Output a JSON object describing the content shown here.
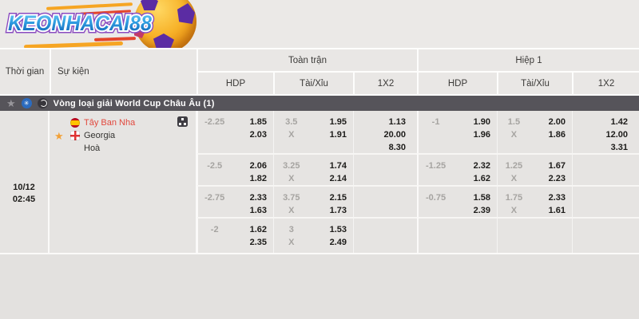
{
  "brand": {
    "name": "KEONHACAI88"
  },
  "header": {
    "time": "Thời gian",
    "event": "Sự kiện",
    "full_match": "Toàn trận",
    "first_half": "Hiệp 1",
    "hdp": "HDP",
    "over_under": "Tài/Xỉu",
    "one_x_two": "1X2"
  },
  "league": {
    "name": "Vòng loại giải World Cup Châu Âu (1)"
  },
  "match": {
    "date": "10/12",
    "time": "02:45",
    "home_team": "Tây Ban Nha",
    "away_team": "Georgia",
    "draw_label": "Hoà"
  },
  "odds_rows": [
    {
      "full": {
        "hdp": "-2.25",
        "hdp_o1": "1.85",
        "hdp_o2": "2.03",
        "ou_line": "3.5",
        "ou_x": "X",
        "ou_o1": "1.95",
        "ou_o2": "1.91",
        "x1": "1.13",
        "x2": "20.00",
        "x3": "8.30"
      },
      "half": {
        "hdp": "-1",
        "hdp_o1": "1.90",
        "hdp_o2": "1.96",
        "ou_line": "1.5",
        "ou_x": "X",
        "ou_o1": "2.00",
        "ou_o2": "1.86",
        "x1": "1.42",
        "x2": "12.00",
        "x3": "3.31"
      }
    },
    {
      "full": {
        "hdp": "-2.5",
        "hdp_o1": "2.06",
        "hdp_o2": "1.82",
        "ou_line": "3.25",
        "ou_x": "X",
        "ou_o1": "1.74",
        "ou_o2": "2.14"
      },
      "half": {
        "hdp": "-1.25",
        "hdp_o1": "2.32",
        "hdp_o2": "1.62",
        "ou_line": "1.25",
        "ou_x": "X",
        "ou_o1": "1.67",
        "ou_o2": "2.23"
      }
    },
    {
      "full": {
        "hdp": "-2.75",
        "hdp_o1": "2.33",
        "hdp_o2": "1.63",
        "ou_line": "3.75",
        "ou_x": "X",
        "ou_o1": "2.15",
        "ou_o2": "1.73"
      },
      "half": {
        "hdp": "-0.75",
        "hdp_o1": "1.58",
        "hdp_o2": "2.39",
        "ou_line": "1.75",
        "ou_x": "X",
        "ou_o1": "2.33",
        "ou_o2": "1.61"
      }
    },
    {
      "full": {
        "hdp": "-2",
        "hdp_o1": "1.62",
        "hdp_o2": "2.35",
        "ou_line": "3",
        "ou_x": "X",
        "ou_o1": "1.53",
        "ou_o2": "2.49"
      },
      "half": {}
    }
  ],
  "colors": {
    "accent_gold": "#f2a138",
    "brand_blue": "#0b57ad",
    "team_red": "#e2483d",
    "bar_dark": "#56545a"
  }
}
